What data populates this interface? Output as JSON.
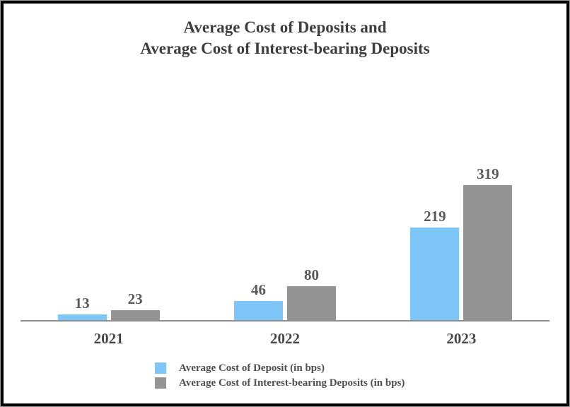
{
  "title": {
    "line1": "Average Cost of Deposits and",
    "line2": "Average Cost of Interest-bearing Deposits"
  },
  "chart_data": {
    "type": "bar",
    "title": "Average Cost of Deposits and Average Cost of Interest-bearing Deposits",
    "categories": [
      "2021",
      "2022",
      "2023"
    ],
    "series": [
      {
        "name": "Average Cost of Deposit (in bps)",
        "color": "#7EC6F8",
        "values": [
          13,
          46,
          219
        ]
      },
      {
        "name": "Average Cost of Interest-bearing Deposits (in bps)",
        "color": "#949494",
        "values": [
          23,
          80,
          319
        ]
      }
    ],
    "value_labels": true,
    "xlabel": "",
    "ylabel": "",
    "ylim": [
      0,
      375
    ],
    "grid": false,
    "axis_color": "#8E8E8E",
    "legend_position": "bottom-left"
  },
  "colors": {
    "frame_border": "#000000",
    "title_text": "#3E3E3E",
    "value_label_text": "#595959",
    "category_label_text": "#474747",
    "legend_text": "#4F4F4F"
  }
}
